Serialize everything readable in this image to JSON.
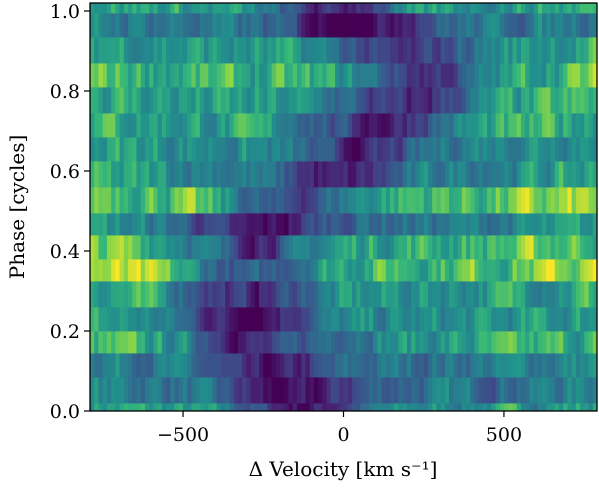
{
  "chart_data": {
    "type": "heatmap",
    "title": "",
    "xlabel": "Δ Velocity [km s⁻¹]",
    "ylabel": "Phase [cycles]",
    "xlim": [
      -790,
      790
    ],
    "ylim": [
      0.0,
      1.02
    ],
    "x_ticks": [
      -500,
      0,
      500
    ],
    "x_tick_labels": [
      "−500",
      "0",
      "500"
    ],
    "y_ticks": [
      0.0,
      0.2,
      0.4,
      0.6,
      0.8,
      1.0
    ],
    "y_tick_labels": [
      "0.0",
      "0.2",
      "0.4",
      "0.6",
      "0.8",
      "1.0"
    ],
    "colormap": "viridis",
    "grid": false,
    "row_phases": [
      0.0,
      0.02,
      0.085,
      0.145,
      0.2,
      0.26,
      0.325,
      0.38,
      0.44,
      0.495,
      0.56,
      0.625,
      0.685,
      0.745,
      0.81,
      0.87,
      0.935,
      0.995
    ],
    "row_absorption_center": [
      -130,
      -170,
      -240,
      -270,
      -310,
      -300,
      -300,
      -280,
      -270,
      -170,
      -10,
      60,
      110,
      200,
      270,
      190,
      20,
      -40
    ],
    "row_intensity": [
      0.58,
      0.45,
      0.48,
      0.62,
      0.55,
      0.62,
      0.78,
      0.72,
      0.48,
      0.75,
      0.55,
      0.58,
      0.62,
      0.6,
      0.68,
      0.6,
      0.45,
      0.62
    ]
  }
}
